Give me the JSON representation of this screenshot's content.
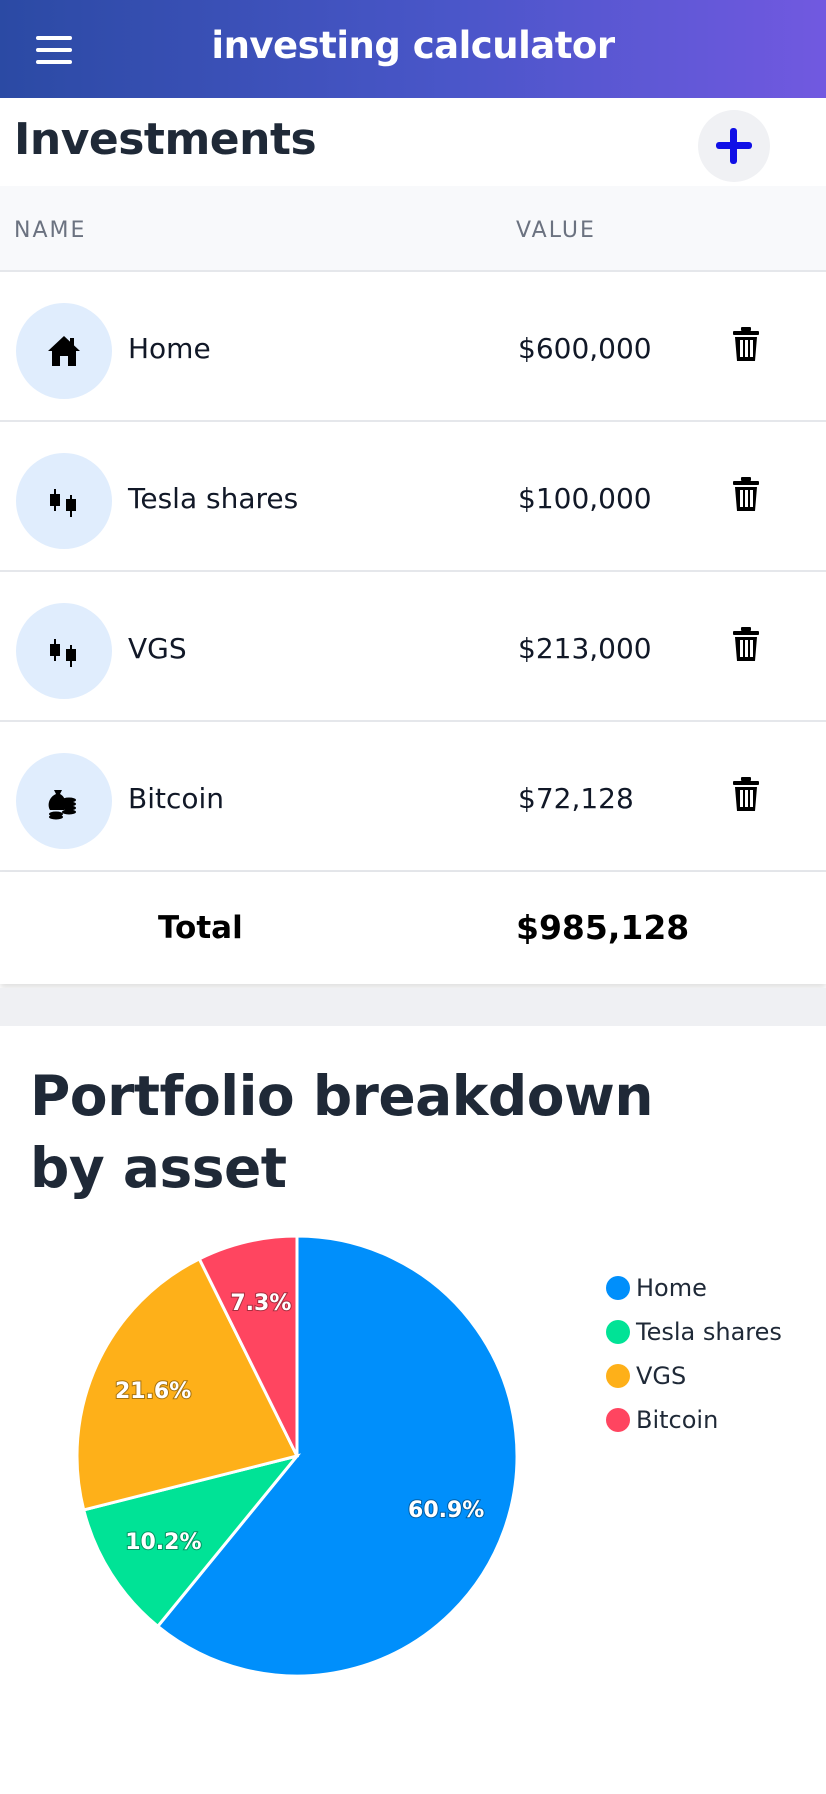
{
  "header": {
    "title": "investing calculator",
    "menu_icon": "hamburger-menu-icon"
  },
  "investments": {
    "title": "Investments",
    "add_icon": "plus-icon",
    "columns": [
      "NAME",
      "VALUE"
    ],
    "rows": [
      {
        "icon": "home-icon",
        "name": "Home",
        "value": "$600,000"
      },
      {
        "icon": "candlestick-chart-icon",
        "name": "Tesla shares",
        "value": "$100,000"
      },
      {
        "icon": "candlestick-chart-icon",
        "name": "VGS",
        "value": "$213,000"
      },
      {
        "icon": "coins-money-bag-icon",
        "name": "Bitcoin",
        "value": "$72,128"
      }
    ],
    "delete_icon": "trash-icon",
    "total_label": "Total",
    "total_value": "$985,128"
  },
  "chart_data": {
    "type": "pie",
    "title": "Portfolio breakdown by asset",
    "categories": [
      "Home",
      "Tesla shares",
      "VGS",
      "Bitcoin"
    ],
    "values": [
      600000,
      100000,
      213000,
      72128
    ],
    "data_labels": [
      "60.9%",
      "10.2%",
      "21.6%",
      "7.3%"
    ],
    "colors": [
      "#008ffb",
      "#00e396",
      "#feb019",
      "#ff4560"
    ],
    "legend": "right"
  }
}
